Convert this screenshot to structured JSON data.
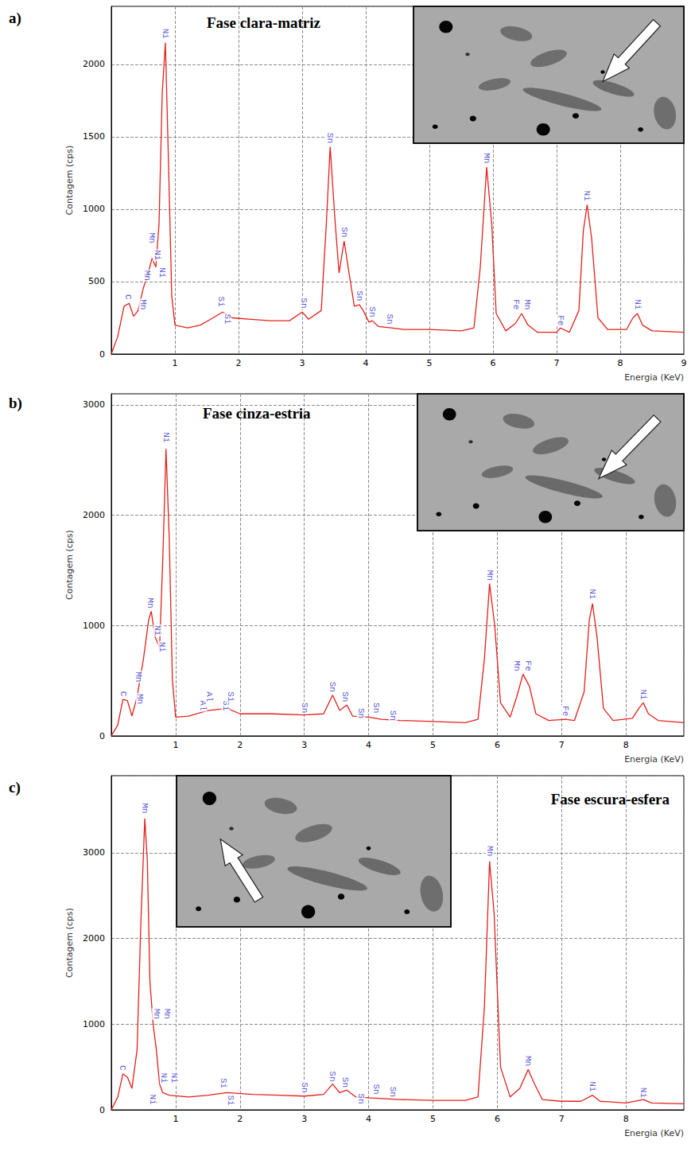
{
  "chart_data": [
    {
      "type": "line",
      "panel": "a)",
      "title": "Fase clara-matriz",
      "x_label": "Energia (KeV)",
      "y_label": "Contagem (cps)",
      "color": "#e3201c",
      "grid": true,
      "xlim": [
        0,
        9
      ],
      "xticks": [
        1,
        2,
        3,
        4,
        5,
        6,
        7,
        8,
        9
      ],
      "ylim": [
        0,
        2400
      ],
      "yticks": [
        0,
        500,
        1000,
        1500,
        2000
      ],
      "x": [
        0,
        0.1,
        0.2,
        0.28,
        0.35,
        0.42,
        0.5,
        0.58,
        0.64,
        0.7,
        0.75,
        0.8,
        0.85,
        0.9,
        0.95,
        1.0,
        1.2,
        1.4,
        1.6,
        1.75,
        1.9,
        2.2,
        2.5,
        2.8,
        3.0,
        3.1,
        3.3,
        3.38,
        3.44,
        3.52,
        3.58,
        3.66,
        3.74,
        3.82,
        3.9,
        3.96,
        4.05,
        4.1,
        4.2,
        4.4,
        4.6,
        5.0,
        5.5,
        5.7,
        5.8,
        5.9,
        5.98,
        6.05,
        6.2,
        6.35,
        6.45,
        6.55,
        6.7,
        7.0,
        7.06,
        7.2,
        7.35,
        7.42,
        7.48,
        7.55,
        7.65,
        7.8,
        8.1,
        8.2,
        8.27,
        8.35,
        8.5,
        9.0
      ],
      "values": [
        0,
        120,
        330,
        350,
        260,
        300,
        450,
        560,
        660,
        600,
        900,
        1800,
        2150,
        1300,
        400,
        200,
        180,
        200,
        250,
        290,
        250,
        240,
        230,
        230,
        290,
        240,
        300,
        900,
        1430,
        900,
        560,
        780,
        550,
        330,
        340,
        300,
        220,
        230,
        190,
        180,
        170,
        170,
        160,
        180,
        600,
        1290,
        900,
        280,
        160,
        210,
        280,
        200,
        150,
        150,
        180,
        150,
        300,
        850,
        1030,
        800,
        250,
        170,
        170,
        250,
        280,
        200,
        160,
        150
      ],
      "annotations": [
        {
          "text": "C",
          "x": 0.26,
          "y": 370
        },
        {
          "text": "Mn",
          "x": 0.5,
          "y": 300
        },
        {
          "text": "Mn",
          "x": 0.56,
          "y": 500
        },
        {
          "text": "Mn",
          "x": 0.64,
          "y": 760
        },
        {
          "text": "Ni",
          "x": 0.72,
          "y": 640
        },
        {
          "text": "Ni",
          "x": 0.8,
          "y": 520
        },
        {
          "text": "Ni",
          "x": 0.85,
          "y": 2170
        },
        {
          "text": "Si",
          "x": 1.72,
          "y": 320
        },
        {
          "text": "Si",
          "x": 1.82,
          "y": 200
        },
        {
          "text": "Sn",
          "x": 3.03,
          "y": 310
        },
        {
          "text": "Sn",
          "x": 3.44,
          "y": 1450
        },
        {
          "text": "Sn",
          "x": 3.66,
          "y": 800
        },
        {
          "text": "Sn",
          "x": 3.9,
          "y": 360
        },
        {
          "text": "Sn",
          "x": 4.1,
          "y": 250
        },
        {
          "text": "Sn",
          "x": 4.38,
          "y": 200
        },
        {
          "text": "Mn",
          "x": 5.9,
          "y": 1310
        },
        {
          "text": "Fe",
          "x": 6.36,
          "y": 300
        },
        {
          "text": "Mn",
          "x": 6.54,
          "y": 300
        },
        {
          "text": "Fe",
          "x": 7.06,
          "y": 190
        },
        {
          "text": "Ni",
          "x": 7.48,
          "y": 1050
        },
        {
          "text": "Ni",
          "x": 8.27,
          "y": 300
        }
      ]
    },
    {
      "type": "line",
      "panel": "b)",
      "title": "Fase cinza-estria",
      "x_label": "Energia (KeV)",
      "y_label": "Contagem (cps)",
      "color": "#e3201c",
      "grid": true,
      "xlim": [
        0,
        8.9
      ],
      "xticks": [
        1,
        2,
        3,
        4,
        5,
        6,
        7,
        8
      ],
      "ylim": [
        0,
        3100
      ],
      "yticks": [
        0,
        1000,
        2000,
        3000
      ],
      "x": [
        0,
        0.1,
        0.18,
        0.25,
        0.32,
        0.4,
        0.5,
        0.58,
        0.62,
        0.68,
        0.75,
        0.8,
        0.85,
        0.9,
        0.95,
        1.0,
        1.2,
        1.5,
        1.8,
        2.0,
        2.5,
        3.0,
        3.3,
        3.44,
        3.55,
        3.66,
        3.75,
        4.0,
        4.2,
        4.5,
        5.0,
        5.5,
        5.7,
        5.8,
        5.88,
        5.96,
        6.05,
        6.2,
        6.3,
        6.4,
        6.5,
        6.6,
        6.8,
        7.06,
        7.2,
        7.35,
        7.43,
        7.48,
        7.55,
        7.65,
        7.8,
        8.1,
        8.2,
        8.27,
        8.35,
        8.5,
        8.9
      ],
      "values": [
        0,
        100,
        330,
        320,
        180,
        350,
        700,
        1050,
        1130,
        900,
        800,
        1600,
        2600,
        1800,
        500,
        170,
        180,
        230,
        250,
        200,
        200,
        190,
        200,
        370,
        230,
        280,
        180,
        170,
        150,
        140,
        130,
        120,
        150,
        700,
        1380,
        1000,
        300,
        170,
        350,
        560,
        450,
        200,
        140,
        150,
        140,
        400,
        1050,
        1200,
        900,
        250,
        140,
        160,
        250,
        300,
        200,
        140,
        120
      ],
      "annotations": [
        {
          "text": "C",
          "x": 0.18,
          "y": 350
        },
        {
          "text": "Mn",
          "x": 0.45,
          "y": 280
        },
        {
          "text": "Mn",
          "x": 0.42,
          "y": 480
        },
        {
          "text": "Mn",
          "x": 0.6,
          "y": 1150
        },
        {
          "text": "Ni",
          "x": 0.72,
          "y": 900
        },
        {
          "text": "Ni",
          "x": 0.79,
          "y": 750
        },
        {
          "text": "Ni",
          "x": 0.85,
          "y": 2650
        },
        {
          "text": "Al",
          "x": 1.42,
          "y": 220
        },
        {
          "text": "Al",
          "x": 1.52,
          "y": 300
        },
        {
          "text": "Si",
          "x": 1.78,
          "y": 220
        },
        {
          "text": "Si",
          "x": 1.86,
          "y": 300
        },
        {
          "text": "Sn",
          "x": 3.0,
          "y": 200
        },
        {
          "text": "Sn",
          "x": 3.44,
          "y": 390
        },
        {
          "text": "Sn",
          "x": 3.64,
          "y": 300
        },
        {
          "text": "Sn",
          "x": 3.88,
          "y": 150
        },
        {
          "text": "Sn",
          "x": 4.12,
          "y": 200
        },
        {
          "text": "Sn",
          "x": 4.38,
          "y": 130
        },
        {
          "text": "Mn",
          "x": 5.88,
          "y": 1400
        },
        {
          "text": "Mn",
          "x": 6.3,
          "y": 580
        },
        {
          "text": "Fe",
          "x": 6.48,
          "y": 580
        },
        {
          "text": "Fe",
          "x": 7.06,
          "y": 170
        },
        {
          "text": "Ni",
          "x": 7.48,
          "y": 1230
        },
        {
          "text": "Ni",
          "x": 8.27,
          "y": 320
        }
      ]
    },
    {
      "type": "line",
      "panel": "c)",
      "title": "Fase escura-esfera",
      "x_label": "Energia (KeV)",
      "y_label": "Contagem (cps)",
      "color": "#e3201c",
      "grid": true,
      "xlim": [
        0,
        8.9
      ],
      "xticks": [
        1,
        2,
        3,
        4,
        5,
        6,
        7,
        8
      ],
      "ylim": [
        0,
        3900
      ],
      "yticks": [
        0,
        1000,
        2000,
        3000
      ],
      "x": [
        0,
        0.1,
        0.18,
        0.25,
        0.32,
        0.4,
        0.46,
        0.52,
        0.56,
        0.6,
        0.65,
        0.7,
        0.75,
        0.8,
        0.9,
        1.2,
        1.5,
        1.8,
        2.2,
        2.6,
        3.0,
        3.3,
        3.44,
        3.55,
        3.66,
        3.8,
        4.0,
        4.5,
        5.0,
        5.5,
        5.7,
        5.8,
        5.88,
        5.95,
        6.05,
        6.2,
        6.35,
        6.48,
        6.58,
        6.7,
        7.0,
        7.3,
        7.48,
        7.6,
        8.0,
        8.27,
        8.4,
        8.9
      ],
      "values": [
        0,
        150,
        420,
        380,
        250,
        700,
        2200,
        3400,
        2900,
        1500,
        1000,
        700,
        300,
        200,
        170,
        150,
        170,
        200,
        180,
        170,
        160,
        180,
        300,
        200,
        230,
        150,
        140,
        120,
        110,
        110,
        150,
        1200,
        2900,
        2300,
        500,
        150,
        250,
        470,
        300,
        120,
        100,
        100,
        170,
        100,
        80,
        120,
        80,
        70
      ],
      "annotations": [
        {
          "text": "C",
          "x": 0.17,
          "y": 450
        },
        {
          "text": "Mn",
          "x": 0.52,
          "y": 3450
        },
        {
          "text": "Mn",
          "x": 0.7,
          "y": 1050
        },
        {
          "text": "Mn",
          "x": 0.87,
          "y": 1050
        },
        {
          "text": "Ni",
          "x": 0.64,
          "y": 50
        },
        {
          "text": "Ni",
          "x": 0.82,
          "y": 300
        },
        {
          "text": "Ni",
          "x": 0.98,
          "y": 300
        },
        {
          "text": "Si",
          "x": 1.74,
          "y": 240
        },
        {
          "text": "Si",
          "x": 1.86,
          "y": 40
        },
        {
          "text": "Sn",
          "x": 3.0,
          "y": 190
        },
        {
          "text": "Sn",
          "x": 3.44,
          "y": 320
        },
        {
          "text": "Sn",
          "x": 3.64,
          "y": 250
        },
        {
          "text": "Sn",
          "x": 3.88,
          "y": 60
        },
        {
          "text": "Sn",
          "x": 4.12,
          "y": 170
        },
        {
          "text": "Sn",
          "x": 4.38,
          "y": 140
        },
        {
          "text": "Mn",
          "x": 5.88,
          "y": 2950
        },
        {
          "text": "Mn",
          "x": 6.48,
          "y": 500
        },
        {
          "text": "Ni",
          "x": 7.48,
          "y": 200
        },
        {
          "text": "Ni",
          "x": 8.27,
          "y": 130
        }
      ]
    }
  ]
}
